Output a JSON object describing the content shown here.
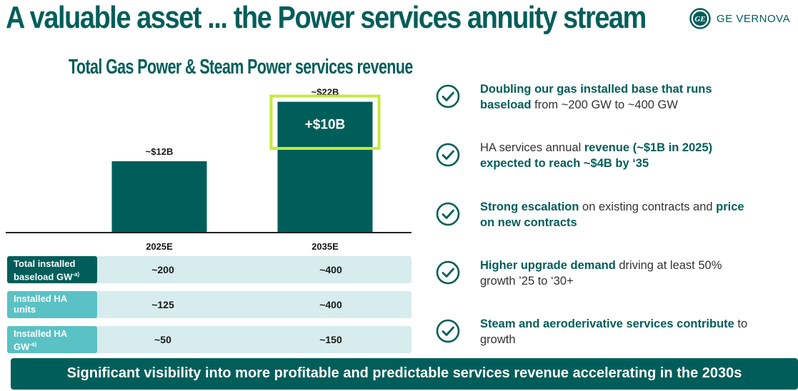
{
  "slide": {
    "title": "A valuable asset ... the Power services annuity stream",
    "logo_text": "GE VERNOVA",
    "banner": "Significant visibility into more profitable and predictable services revenue accelerating in the 2030s"
  },
  "chart_data": {
    "type": "bar",
    "title": "Total Gas Power & Steam Power services revenue",
    "categories": [
      "2025E",
      "2035E"
    ],
    "values": [
      12,
      22
    ],
    "data_labels": [
      "~$12B",
      "~$22B"
    ],
    "unit": "$B",
    "highlight": {
      "category": "2035E",
      "value": 10,
      "label": "+$10B",
      "outline_color": "#c6ea3c"
    },
    "bar_color": "#005e5a",
    "axis_color": "#222222"
  },
  "table": {
    "rows": [
      {
        "label_lines": [
          "Total installed",
          "baseload GW"
        ],
        "superscript": "-a)",
        "values": [
          "~200",
          "~400"
        ]
      },
      {
        "label_lines": [
          "Installed HA",
          "units"
        ],
        "superscript": "",
        "values": [
          "~125",
          "~400"
        ]
      },
      {
        "label_lines": [
          "Installed HA",
          "GW"
        ],
        "superscript": "-a)",
        "values": [
          "~50",
          "~150"
        ]
      }
    ]
  },
  "bullets": [
    {
      "line1": [
        {
          "text": "Doubling our gas installed base that runs",
          "bold": true
        }
      ],
      "line2": [
        {
          "text": "baseload",
          "bold": true
        },
        {
          "text": " from ~200 GW to ~400 GW",
          "bold": false
        }
      ]
    },
    {
      "line1": [
        {
          "text": "HA services annual ",
          "bold": false
        },
        {
          "text": "revenue (~$1B in 2025)",
          "bold": true
        }
      ],
      "line2": [
        {
          "text": "expected to reach ~$4B by ‘35",
          "bold": true
        }
      ]
    },
    {
      "line1": [
        {
          "text": "Strong escalation",
          "bold": true
        },
        {
          "text": " on existing contracts and ",
          "bold": false
        },
        {
          "text": "price",
          "bold": true
        }
      ],
      "line2": [
        {
          "text": "on new contracts",
          "bold": true
        }
      ]
    },
    {
      "line1": [
        {
          "text": "Higher upgrade demand",
          "bold": true
        },
        {
          "text": " driving at least 50%",
          "bold": false
        }
      ],
      "line2": [
        {
          "text": "growth ’25 to ‘30+",
          "bold": false
        }
      ]
    },
    {
      "line1": [
        {
          "text": "Steam and aeroderivative services contribute",
          "bold": true
        },
        {
          "text": " to",
          "bold": false
        }
      ],
      "line2": [
        {
          "text": "growth",
          "bold": false
        }
      ]
    }
  ],
  "colors": {
    "brand": "#005e5a",
    "accent_light": "#5ac2c4",
    "table_bg": "#d6eced",
    "highlight": "#c6ea3c"
  }
}
